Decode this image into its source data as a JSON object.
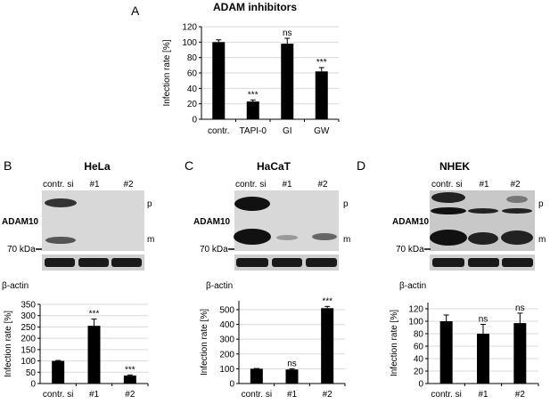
{
  "panel_letters": {
    "A": "A",
    "B": "B",
    "C": "C",
    "D": "D"
  },
  "panel_titles": {
    "A": "ADAM inhibitors",
    "B": "HeLa",
    "C": "HaCaT",
    "D": "NHEK"
  },
  "blots": {
    "lane_labels": [
      "contr. si",
      "#1",
      "#2"
    ],
    "protein_label": "ADAM10",
    "control_label": "β-actin",
    "marker_label": "70 kDa",
    "band_p": "p",
    "band_m": "m"
  },
  "colors": {
    "bar": "#000000",
    "grid": "#d9d9d9",
    "blot_bg": "#d8d8d8",
    "band": "#1a1a1a"
  },
  "chart_data": [
    {
      "panel": "A",
      "type": "bar",
      "title": "ADAM inhibitors",
      "categories": [
        "contr.",
        "TAPI-0",
        "GI",
        "GW"
      ],
      "values": [
        100,
        23,
        98,
        62
      ],
      "errors": [
        3,
        2,
        7,
        5
      ],
      "annotations": [
        "",
        "***",
        "ns",
        "***"
      ],
      "ylabel": "Infection rate [%]",
      "ylim": [
        0,
        120
      ],
      "yticks": [
        0,
        20,
        40,
        60,
        80,
        100,
        120
      ],
      "grid": true
    },
    {
      "panel": "B",
      "type": "bar",
      "categories": [
        "contr. si",
        "#1",
        "#2"
      ],
      "values": [
        100,
        255,
        35
      ],
      "errors": [
        2,
        30,
        3
      ],
      "annotations": [
        "",
        "***",
        "***"
      ],
      "ylabel": "Infection rate [%]",
      "ylim": [
        0,
        350
      ],
      "yticks": [
        0,
        50,
        100,
        150,
        200,
        250,
        300,
        350
      ],
      "grid": true
    },
    {
      "panel": "C",
      "type": "bar",
      "categories": [
        "contr. si",
        "#1",
        "#2"
      ],
      "values": [
        100,
        95,
        510
      ],
      "errors": [
        2,
        5,
        12
      ],
      "annotations": [
        "",
        "ns",
        "***"
      ],
      "ylabel": "Infection rate [%]",
      "ylim": [
        0,
        560
      ],
      "yticks": [
        0,
        100,
        200,
        300,
        400,
        500
      ],
      "grid": true
    },
    {
      "panel": "D",
      "type": "bar",
      "categories": [
        "contr. si",
        "#1",
        "#2"
      ],
      "values": [
        100,
        80,
        97
      ],
      "errors": [
        10,
        15,
        16
      ],
      "annotations": [
        "",
        "ns",
        "ns"
      ],
      "ylabel": "Infection rate [%]",
      "ylim": [
        0,
        130
      ],
      "yticks": [
        0,
        20,
        40,
        60,
        80,
        100,
        120
      ],
      "grid": true
    }
  ]
}
